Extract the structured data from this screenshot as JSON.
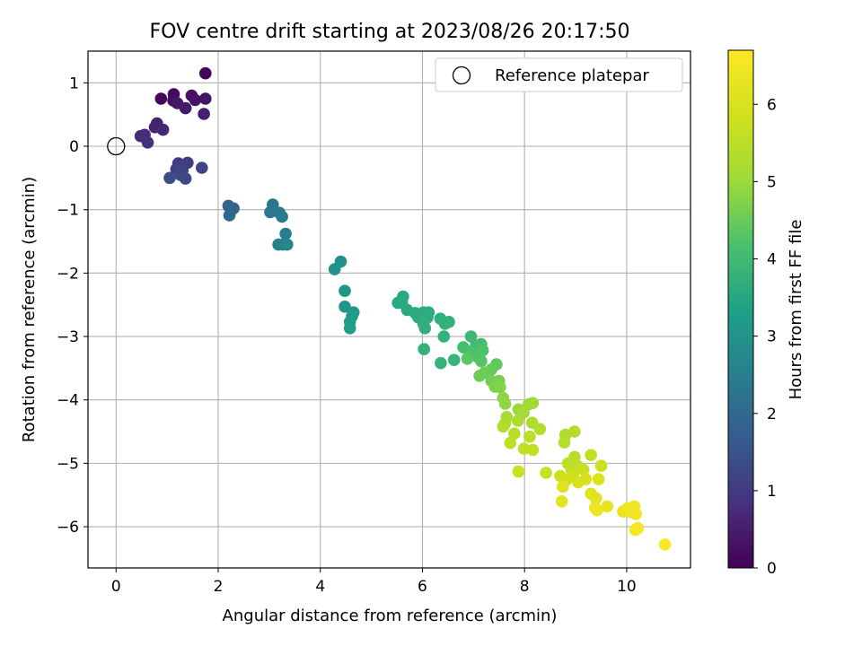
{
  "chart_data": {
    "type": "scatter",
    "title": "FOV centre drift starting at 2023/08/26 20:17:50",
    "xlabel": "Angular distance from reference (arcmin)",
    "ylabel": "Rotation from reference (arcmin)",
    "xlim": [
      -0.55,
      11.25
    ],
    "ylim": [
      -6.65,
      1.5
    ],
    "xticks": [
      0,
      2,
      4,
      6,
      8,
      10
    ],
    "yticks": [
      1,
      0,
      -1,
      -2,
      -3,
      -4,
      -5,
      -6
    ],
    "grid": true,
    "legend": {
      "placement": "top-right",
      "entries": [
        "Reference platepar"
      ]
    },
    "colorbar": {
      "label": "Hours from first FF file",
      "colormap": "viridis",
      "range": [
        0,
        6.7
      ],
      "ticks": [
        0,
        1,
        2,
        3,
        4,
        5,
        6
      ]
    },
    "reference_point": {
      "x": 0,
      "y": 0
    },
    "series": [
      {
        "points": [
          [
            1.75,
            1.15,
            0.05
          ],
          [
            0.88,
            0.75,
            0.1
          ],
          [
            1.13,
            0.82,
            0.15
          ],
          [
            1.12,
            0.72,
            0.2
          ],
          [
            1.48,
            0.8,
            0.25
          ],
          [
            1.55,
            0.73,
            0.3
          ],
          [
            1.75,
            0.75,
            0.35
          ],
          [
            1.2,
            0.68,
            0.4
          ],
          [
            1.36,
            0.6,
            0.45
          ],
          [
            1.72,
            0.51,
            0.5
          ],
          [
            0.8,
            0.36,
            0.55
          ],
          [
            0.76,
            0.3,
            0.6
          ],
          [
            0.92,
            0.26,
            0.65
          ],
          [
            0.56,
            0.18,
            0.7
          ],
          [
            0.48,
            0.16,
            0.75
          ],
          [
            0.62,
            0.06,
            0.8
          ],
          [
            1.22,
            -0.27,
            1.0
          ],
          [
            1.4,
            -0.26,
            1.05
          ],
          [
            1.18,
            -0.36,
            1.1
          ],
          [
            1.3,
            -0.38,
            1.15
          ],
          [
            1.68,
            -0.34,
            1.2
          ],
          [
            1.26,
            -0.45,
            1.25
          ],
          [
            1.36,
            -0.51,
            1.3
          ],
          [
            1.05,
            -0.5,
            1.35
          ],
          [
            2.2,
            -0.94,
            1.8
          ],
          [
            2.3,
            -0.98,
            1.85
          ],
          [
            2.26,
            -1.0,
            1.9
          ],
          [
            2.22,
            -1.09,
            1.95
          ],
          [
            3.07,
            -0.92,
            2.3
          ],
          [
            3.02,
            -1.04,
            2.35
          ],
          [
            3.2,
            -1.05,
            2.4
          ],
          [
            3.25,
            -1.11,
            2.45
          ],
          [
            3.32,
            -1.38,
            2.5
          ],
          [
            3.18,
            -1.55,
            2.55
          ],
          [
            3.27,
            -1.55,
            2.6
          ],
          [
            3.35,
            -1.55,
            2.65
          ],
          [
            4.4,
            -1.82,
            2.95
          ],
          [
            4.28,
            -1.94,
            3.0
          ],
          [
            4.48,
            -2.28,
            3.05
          ],
          [
            4.48,
            -2.53,
            3.1
          ],
          [
            4.65,
            -2.62,
            3.15
          ],
          [
            4.62,
            -2.68,
            3.2
          ],
          [
            4.58,
            -2.77,
            3.25
          ],
          [
            4.58,
            -2.87,
            3.3
          ],
          [
            5.52,
            -2.47,
            3.5
          ],
          [
            5.62,
            -2.37,
            3.52
          ],
          [
            5.6,
            -2.47,
            3.54
          ],
          [
            5.7,
            -2.58,
            3.56
          ],
          [
            5.86,
            -2.63,
            3.58
          ],
          [
            5.92,
            -2.7,
            3.6
          ],
          [
            6.02,
            -2.62,
            3.62
          ],
          [
            6.12,
            -2.62,
            3.64
          ],
          [
            6.1,
            -2.7,
            3.66
          ],
          [
            6.02,
            -2.8,
            3.68
          ],
          [
            6.05,
            -2.87,
            3.7
          ],
          [
            6.35,
            -2.72,
            3.72
          ],
          [
            6.44,
            -2.8,
            3.74
          ],
          [
            6.52,
            -2.77,
            3.76
          ],
          [
            6.42,
            -3.0,
            3.78
          ],
          [
            6.03,
            -3.2,
            3.8
          ],
          [
            6.36,
            -3.42,
            3.82
          ],
          [
            6.62,
            -3.37,
            3.84
          ],
          [
            6.95,
            -3.0,
            3.95
          ],
          [
            7.05,
            -3.14,
            4.0
          ],
          [
            7.15,
            -3.12,
            4.05
          ],
          [
            6.8,
            -3.17,
            4.1
          ],
          [
            6.92,
            -3.24,
            4.15
          ],
          [
            7.18,
            -3.22,
            4.2
          ],
          [
            7.08,
            -3.32,
            4.25
          ],
          [
            7.15,
            -3.39,
            4.3
          ],
          [
            6.88,
            -3.35,
            4.35
          ],
          [
            7.45,
            -3.44,
            4.4
          ],
          [
            7.35,
            -3.52,
            4.45
          ],
          [
            7.22,
            -3.57,
            4.5
          ],
          [
            7.12,
            -3.62,
            4.55
          ],
          [
            7.35,
            -3.7,
            4.6
          ],
          [
            7.5,
            -3.7,
            4.65
          ],
          [
            7.42,
            -3.79,
            4.7
          ],
          [
            7.52,
            -3.8,
            4.75
          ],
          [
            7.58,
            -3.97,
            4.85
          ],
          [
            7.62,
            -4.06,
            4.9
          ],
          [
            7.88,
            -4.15,
            4.95
          ],
          [
            8.08,
            -4.07,
            5.0
          ],
          [
            8.16,
            -4.05,
            5.05
          ],
          [
            7.98,
            -4.2,
            5.1
          ],
          [
            7.65,
            -4.27,
            5.15
          ],
          [
            7.62,
            -4.37,
            5.2
          ],
          [
            7.87,
            -4.33,
            5.25
          ],
          [
            8.15,
            -4.36,
            5.3
          ],
          [
            7.58,
            -4.42,
            5.35
          ],
          [
            8.3,
            -4.46,
            5.4
          ],
          [
            7.8,
            -4.53,
            5.45
          ],
          [
            8.1,
            -4.58,
            5.5
          ],
          [
            7.72,
            -4.68,
            5.55
          ],
          [
            7.99,
            -4.77,
            5.6
          ],
          [
            8.16,
            -4.79,
            5.65
          ],
          [
            8.42,
            -5.15,
            5.7
          ],
          [
            7.88,
            -5.13,
            5.75
          ],
          [
            8.8,
            -4.55,
            5.3
          ],
          [
            8.98,
            -4.5,
            5.35
          ],
          [
            8.78,
            -4.67,
            5.4
          ],
          [
            8.98,
            -4.9,
            5.45
          ],
          [
            8.85,
            -5.0,
            5.5
          ],
          [
            9.05,
            -5.05,
            5.55
          ],
          [
            9.3,
            -4.87,
            5.6
          ],
          [
            8.92,
            -5.1,
            5.65
          ],
          [
            9.15,
            -5.1,
            5.7
          ],
          [
            9.5,
            -5.04,
            5.75
          ],
          [
            8.7,
            -5.2,
            5.8
          ],
          [
            8.95,
            -5.2,
            5.85
          ],
          [
            8.82,
            -5.26,
            5.9
          ],
          [
            9.05,
            -5.3,
            5.95
          ],
          [
            9.2,
            -5.25,
            6.0
          ],
          [
            9.45,
            -5.25,
            6.05
          ],
          [
            8.75,
            -5.37,
            6.1
          ],
          [
            9.3,
            -5.48,
            6.15
          ],
          [
            9.4,
            -5.55,
            6.2
          ],
          [
            8.73,
            -5.6,
            6.25
          ],
          [
            9.62,
            -5.68,
            6.3
          ],
          [
            9.38,
            -5.7,
            6.35
          ],
          [
            9.42,
            -5.74,
            6.4
          ],
          [
            9.93,
            -5.76,
            6.35
          ],
          [
            10.02,
            -5.71,
            6.4
          ],
          [
            10.15,
            -5.68,
            6.45
          ],
          [
            10.08,
            -5.77,
            6.5
          ],
          [
            10.18,
            -5.8,
            6.52
          ],
          [
            10.22,
            -6.02,
            6.55
          ],
          [
            10.17,
            -6.05,
            6.6
          ],
          [
            10.75,
            -6.28,
            6.7
          ]
        ]
      }
    ]
  }
}
